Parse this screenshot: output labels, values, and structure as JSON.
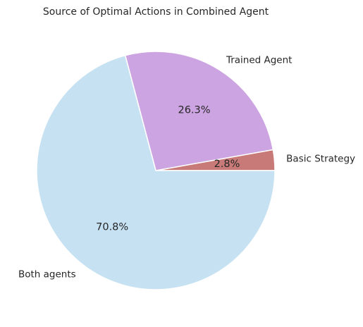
{
  "chart_data": {
    "type": "pie",
    "title": "Source of Optimal Actions in Combined Agent",
    "slices": [
      {
        "label": "Basic Strategy",
        "value": 2.8,
        "pct_label": "2.8%",
        "color": "#c87a78"
      },
      {
        "label": "Trained Agent",
        "value": 26.3,
        "pct_label": "26.3%",
        "color": "#cda4e2"
      },
      {
        "label": "Both agents",
        "value": 70.8,
        "pct_label": "70.8%",
        "color": "#c6e1f2"
      }
    ],
    "start_angle_deg": 0,
    "direction": "counterclockwise",
    "legend": "none"
  }
}
